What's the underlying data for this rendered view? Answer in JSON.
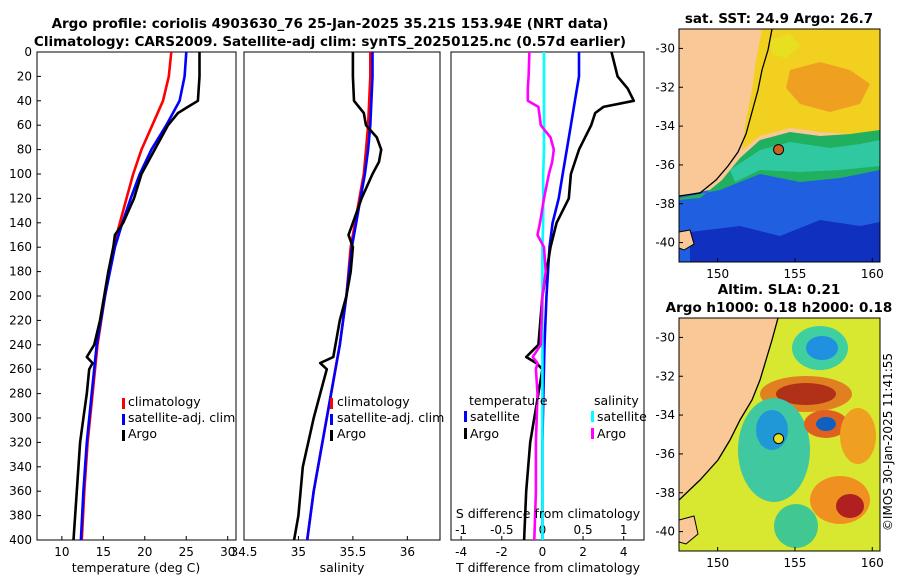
{
  "title": {
    "line1": "Argo profile: coriolis 4903630_76 25-Jan-2025 35.21S 153.94E (NRT data)",
    "line2": "Climatology: CARS2009. Satellite-adj clim: synTS_20250125.nc (0.57d earlier)"
  },
  "colors": {
    "climatology": "#ff0000",
    "satellite": "#0000ff",
    "argo": "#000000",
    "sat_salinity": "#00ffff",
    "argo_salinity": "#ff00ff"
  },
  "chart_data": [
    {
      "type": "line",
      "id": "temperature",
      "xlabel": "temperature (deg C)",
      "ylim": [
        0,
        400
      ],
      "xlim": [
        7,
        31
      ],
      "y_reversed": true,
      "yticks": [
        0,
        20,
        40,
        60,
        80,
        100,
        120,
        140,
        160,
        180,
        200,
        220,
        240,
        260,
        280,
        300,
        320,
        340,
        360,
        380,
        400
      ],
      "xticks": [
        10,
        15,
        20,
        25,
        30
      ],
      "legend": [
        "climatology",
        "satellite-adj. clim",
        "Argo"
      ],
      "legend_position": "lower-right",
      "series": [
        {
          "name": "climatology",
          "color": "#ff0000",
          "depth": [
            0,
            20,
            40,
            60,
            80,
            100,
            120,
            140,
            160,
            200,
            240,
            280,
            320,
            360,
            400
          ],
          "values": [
            23.2,
            22.9,
            22.2,
            20.9,
            19.6,
            18.6,
            17.8,
            17.0,
            16.2,
            15.2,
            14.3,
            13.7,
            13.1,
            12.7,
            12.4
          ]
        },
        {
          "name": "satellite-adj. clim",
          "color": "#0000ff",
          "depth": [
            0,
            20,
            40,
            60,
            80,
            100,
            120,
            140,
            160,
            200,
            240,
            280,
            320,
            360,
            400
          ],
          "values": [
            25.0,
            24.8,
            24.2,
            22.6,
            20.8,
            19.4,
            18.3,
            17.3,
            16.4,
            15.2,
            14.2,
            13.6,
            13.0,
            12.6,
            12.3
          ]
        },
        {
          "name": "Argo",
          "color": "#000000",
          "depth": [
            0,
            20,
            40,
            45,
            50,
            60,
            80,
            100,
            120,
            140,
            150,
            160,
            180,
            200,
            220,
            240,
            250,
            255,
            260,
            280,
            300,
            320,
            360,
            400
          ],
          "values": [
            26.6,
            26.6,
            26.4,
            25.2,
            24.0,
            22.8,
            21.2,
            19.6,
            18.7,
            17.4,
            16.4,
            16.2,
            15.6,
            15.1,
            14.6,
            13.9,
            13.0,
            13.7,
            13.3,
            13.0,
            12.6,
            12.2,
            11.8,
            11.4
          ]
        }
      ]
    },
    {
      "type": "line",
      "id": "salinity",
      "xlabel": "salinity",
      "ylim": [
        0,
        400
      ],
      "xlim": [
        34.5,
        36.3
      ],
      "y_reversed": true,
      "xticks": [
        34.5,
        35,
        35.5,
        36
      ],
      "xtick_labels": [
        "34.5",
        "35",
        "35.5",
        "36"
      ],
      "legend": [
        "climatology",
        "satellite-adj. clim",
        "Argo"
      ],
      "legend_position": "lower-right",
      "series": [
        {
          "name": "climatology",
          "color": "#ff0000",
          "depth": [
            0,
            20,
            40,
            60,
            80,
            100,
            120,
            140,
            160,
            200,
            240,
            280,
            320,
            360,
            400
          ],
          "values": [
            35.66,
            35.66,
            35.65,
            35.64,
            35.62,
            35.6,
            35.56,
            35.52,
            35.48,
            35.44,
            35.38,
            35.3,
            35.22,
            35.14,
            35.08
          ]
        },
        {
          "name": "satellite-adj. clim",
          "color": "#0000ff",
          "depth": [
            0,
            20,
            40,
            60,
            80,
            100,
            120,
            140,
            160,
            200,
            240,
            280,
            320,
            360,
            400
          ],
          "values": [
            35.68,
            35.68,
            35.67,
            35.66,
            35.64,
            35.61,
            35.57,
            35.53,
            35.49,
            35.44,
            35.38,
            35.3,
            35.22,
            35.14,
            35.08
          ]
        },
        {
          "name": "Argo",
          "color": "#000000",
          "depth": [
            0,
            20,
            40,
            50,
            60,
            70,
            80,
            90,
            100,
            120,
            140,
            150,
            160,
            180,
            200,
            220,
            250,
            255,
            260,
            280,
            300,
            340,
            380,
            400
          ],
          "values": [
            35.5,
            35.5,
            35.51,
            35.6,
            35.62,
            35.72,
            35.76,
            35.74,
            35.68,
            35.58,
            35.5,
            35.46,
            35.5,
            35.48,
            35.44,
            35.38,
            35.32,
            35.2,
            35.26,
            35.2,
            35.14,
            35.04,
            35.0,
            34.96
          ]
        }
      ]
    },
    {
      "type": "line",
      "id": "difference",
      "xlabel": "T difference from climatology",
      "x2label": "S difference from climatology",
      "ylim": [
        0,
        400
      ],
      "xlim": [
        -4.5,
        5
      ],
      "y_reversed": true,
      "xticks": [
        -4,
        -2,
        0,
        2,
        4
      ],
      "x2lim": [
        -1.125,
        1.25
      ],
      "x2ticks": [
        -1,
        -0.5,
        0,
        0.5,
        1
      ],
      "x2tick_labels": [
        "-1",
        "-0.5",
        "0",
        "0.5",
        "1"
      ],
      "legend_groups": [
        {
          "title": "temperature",
          "entries": [
            "satellite",
            "Argo"
          ]
        },
        {
          "title": "salinity",
          "entries": [
            "satellite",
            "Argo"
          ]
        }
      ],
      "series": [
        {
          "name": "temperature satellite",
          "axis": "T",
          "color": "#0000ff",
          "depth": [
            0,
            20,
            40,
            60,
            80,
            100,
            120,
            140,
            160,
            200,
            240,
            280,
            320,
            360,
            400
          ],
          "values": [
            1.8,
            1.8,
            1.6,
            1.4,
            1.2,
            1.0,
            0.8,
            0.5,
            0.35,
            0.2,
            0.1,
            0.05,
            0.0,
            0.0,
            0.0
          ]
        },
        {
          "name": "temperature Argo",
          "axis": "T",
          "color": "#000000",
          "depth": [
            0,
            20,
            30,
            40,
            45,
            50,
            60,
            80,
            100,
            120,
            140,
            160,
            200,
            240,
            250,
            255,
            260,
            280,
            320,
            360,
            400
          ],
          "values": [
            3.4,
            3.7,
            4.2,
            4.5,
            3.0,
            2.6,
            2.4,
            1.8,
            1.4,
            1.3,
            0.7,
            0.4,
            0.0,
            -0.2,
            -0.8,
            -0.3,
            0.0,
            -0.2,
            -0.6,
            -0.8,
            -0.9
          ]
        },
        {
          "name": "salinity satellite",
          "axis": "S",
          "color": "#00ffff",
          "depth": [
            0,
            20,
            40,
            60,
            80,
            100,
            120,
            140,
            160,
            200,
            240,
            280,
            320,
            360,
            400
          ],
          "values": [
            0.02,
            0.02,
            0.02,
            0.02,
            0.02,
            0.01,
            0.01,
            0.01,
            0.0,
            0.0,
            0.0,
            0.0,
            0.0,
            0.0,
            0.0
          ]
        },
        {
          "name": "salinity Argo",
          "axis": "S",
          "color": "#ff00ff",
          "depth": [
            0,
            20,
            30,
            40,
            45,
            50,
            60,
            70,
            80,
            90,
            100,
            120,
            140,
            150,
            160,
            180,
            200,
            240,
            250,
            255,
            260,
            280,
            320,
            360,
            400
          ],
          "values": [
            -0.16,
            -0.17,
            -0.18,
            -0.18,
            -0.05,
            -0.04,
            -0.02,
            0.1,
            0.14,
            0.12,
            0.08,
            0.02,
            -0.03,
            -0.06,
            0.02,
            0.04,
            0.0,
            -0.02,
            -0.12,
            -0.06,
            -0.08,
            -0.06,
            -0.08,
            -0.08,
            -0.1
          ]
        }
      ]
    },
    {
      "type": "heatmap",
      "id": "sst_map",
      "title": "sat. SST: 24.9  Argo: 26.7",
      "xlim": [
        147.5,
        160.5
      ],
      "ylim": [
        -41,
        -29
      ],
      "xticks": [
        150,
        155,
        160
      ],
      "yticks": [
        -40,
        -38,
        -36,
        -34,
        -32,
        -30
      ],
      "marker": {
        "lon": 153.94,
        "lat": -35.21
      }
    },
    {
      "type": "heatmap",
      "id": "sla_map",
      "title_line1": "Altim. SLA: 0.21",
      "title_line2": "Argo h1000: 0.18  h2000: 0.18",
      "xlim": [
        147.5,
        160.5
      ],
      "ylim": [
        -41,
        -29
      ],
      "xticks": [
        150,
        155,
        160
      ],
      "yticks": [
        -40,
        -38,
        -36,
        -34,
        -32,
        -30
      ],
      "marker": {
        "lon": 153.94,
        "lat": -35.21
      }
    }
  ],
  "stamp": "©IMOS 30-Jan-2025 11:41:55"
}
